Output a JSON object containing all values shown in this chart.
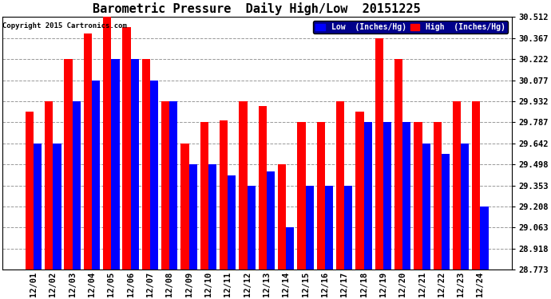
{
  "title": "Barometric Pressure  Daily High/Low  20151225",
  "copyright": "Copyright 2015 Cartronics.com",
  "legend_low": "Low  (Inches/Hg)",
  "legend_high": "High  (Inches/Hg)",
  "dates": [
    "12/01",
    "12/02",
    "12/03",
    "12/04",
    "12/05",
    "12/06",
    "12/07",
    "12/08",
    "12/09",
    "12/10",
    "12/11",
    "12/12",
    "12/13",
    "12/14",
    "12/15",
    "12/16",
    "12/17",
    "12/18",
    "12/19",
    "12/20",
    "12/21",
    "12/22",
    "12/23",
    "12/24"
  ],
  "low": [
    29.642,
    29.642,
    29.932,
    30.077,
    30.222,
    30.222,
    30.077,
    29.932,
    29.498,
    29.498,
    29.42,
    29.353,
    29.45,
    29.063,
    29.353,
    29.353,
    29.353,
    29.787,
    29.787,
    29.787,
    29.642,
    29.57,
    29.642,
    29.208
  ],
  "high": [
    29.86,
    29.932,
    30.222,
    30.4,
    30.512,
    30.44,
    30.222,
    29.932,
    29.642,
    29.787,
    29.8,
    29.932,
    29.9,
    29.5,
    29.787,
    29.787,
    29.932,
    29.86,
    30.367,
    30.222,
    29.787,
    29.787,
    29.932,
    29.932
  ],
  "ylim_min": 28.773,
  "ylim_max": 30.512,
  "yticks": [
    28.773,
    28.918,
    29.063,
    29.208,
    29.353,
    29.498,
    29.642,
    29.787,
    29.932,
    30.077,
    30.222,
    30.367,
    30.512
  ],
  "bg_color": "#ffffff",
  "plot_bg_color": "#ffffff",
  "low_color": "#0000ff",
  "high_color": "#ff0000",
  "grid_color": "#999999",
  "title_fontsize": 11,
  "tick_fontsize": 7.5,
  "bar_width": 0.42
}
